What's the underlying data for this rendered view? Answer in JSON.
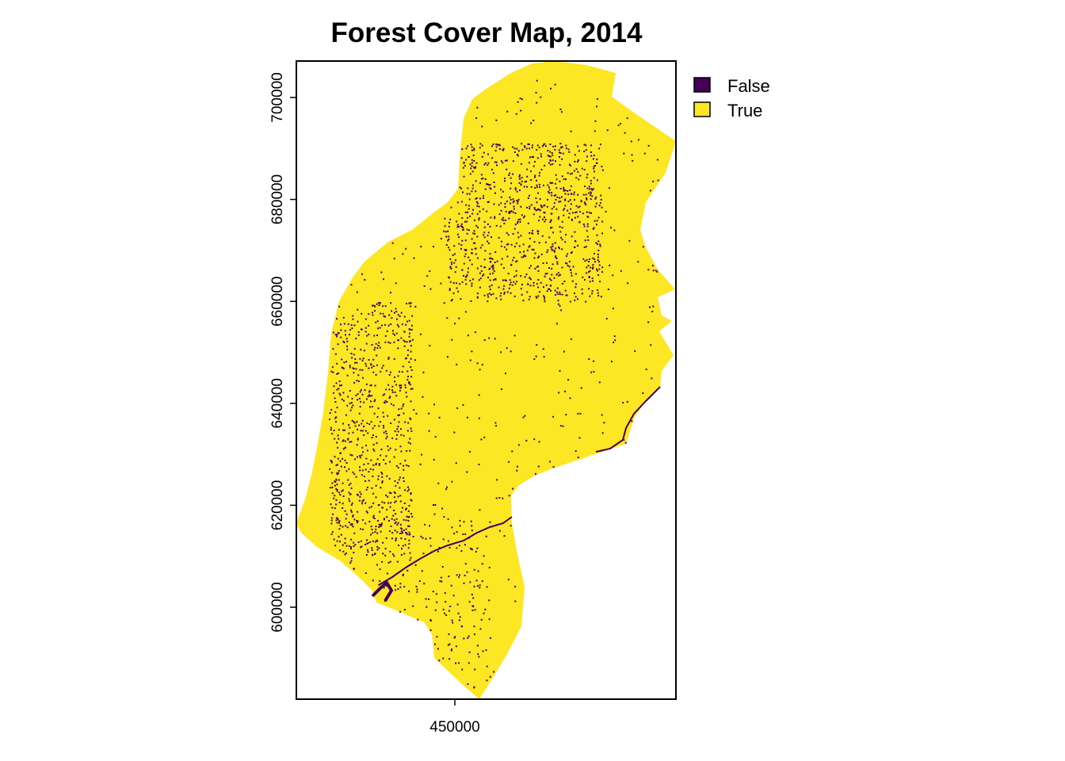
{
  "title": "Forest Cover Map, 2014",
  "colors": {
    "false": "#440154",
    "true": "#FDE725",
    "frame": "#000000"
  },
  "map": {
    "x_ticks": [
      {
        "value": 450000,
        "label": "450000"
      }
    ],
    "y_ticks": [
      {
        "value": 600000,
        "label": "600000"
      },
      {
        "value": 620000,
        "label": "620000"
      },
      {
        "value": 640000,
        "label": "640000"
      },
      {
        "value": 660000,
        "label": "660000"
      },
      {
        "value": 680000,
        "label": "680000"
      },
      {
        "value": 700000,
        "label": "700000"
      }
    ]
  },
  "legend": {
    "items": [
      {
        "label": "False",
        "color": "#440154"
      },
      {
        "label": "True",
        "color": "#FDE725"
      }
    ]
  }
}
